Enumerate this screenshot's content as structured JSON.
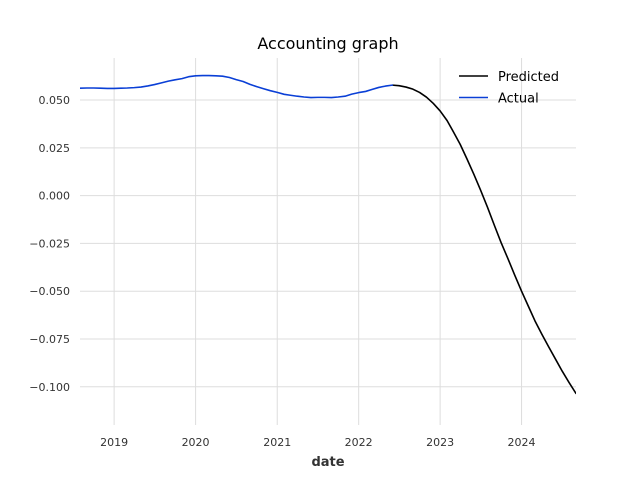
{
  "chart_data": {
    "type": "line",
    "title": "Accounting graph",
    "xlabel": "date",
    "ylabel": "",
    "x_axis_type": "date",
    "xlim": [
      "2018-08-01",
      "2024-09-01"
    ],
    "ylim": [
      -0.12,
      0.072
    ],
    "x_ticks": [
      "2019",
      "2020",
      "2021",
      "2022",
      "2023",
      "2024"
    ],
    "x_tick_dates": [
      "2019-01-01",
      "2020-01-01",
      "2021-01-01",
      "2022-01-01",
      "2023-01-01",
      "2024-01-01"
    ],
    "y_ticks": [
      "0.050",
      "0.025",
      "0.000",
      "−0.025",
      "−0.050",
      "−0.075",
      "−0.100"
    ],
    "y_tick_values": [
      0.05,
      0.025,
      0.0,
      -0.025,
      -0.05,
      -0.075,
      -0.1
    ],
    "grid": true,
    "legend_position": "top-right",
    "series": [
      {
        "name": "Predicted",
        "color": "#000000",
        "x": [
          "2022-06-01",
          "2022-07-01",
          "2022-08-01",
          "2022-09-01",
          "2022-10-01",
          "2022-11-01",
          "2022-12-01",
          "2023-01-01",
          "2023-02-01",
          "2023-03-01",
          "2023-04-01",
          "2023-05-01",
          "2023-06-01",
          "2023-07-01",
          "2023-08-01",
          "2023-09-01",
          "2023-10-01",
          "2023-11-01",
          "2023-12-01",
          "2024-01-01",
          "2024-02-01",
          "2024-03-01",
          "2024-04-01",
          "2024-05-01",
          "2024-06-01",
          "2024-07-01",
          "2024-08-01",
          "2024-09-01"
        ],
        "y": [
          0.0578,
          0.0575,
          0.0568,
          0.0557,
          0.054,
          0.0515,
          0.0483,
          0.0443,
          0.0393,
          0.0335,
          0.0268,
          0.0193,
          0.0112,
          0.003,
          -0.006,
          -0.0155,
          -0.0245,
          -0.033,
          -0.0415,
          -0.05,
          -0.058,
          -0.0655,
          -0.0725,
          -0.079,
          -0.0855,
          -0.0918,
          -0.0978,
          -0.1035
        ]
      },
      {
        "name": "Actual",
        "color": "#0a3fd6",
        "x": [
          "2018-08-01",
          "2018-09-01",
          "2018-10-01",
          "2018-11-01",
          "2018-12-01",
          "2019-01-01",
          "2019-02-01",
          "2019-03-01",
          "2019-04-01",
          "2019-05-01",
          "2019-06-01",
          "2019-07-01",
          "2019-08-01",
          "2019-09-01",
          "2019-10-01",
          "2019-11-01",
          "2019-12-01",
          "2020-01-01",
          "2020-02-01",
          "2020-03-01",
          "2020-04-01",
          "2020-05-01",
          "2020-06-01",
          "2020-07-01",
          "2020-08-01",
          "2020-09-01",
          "2020-10-01",
          "2020-11-01",
          "2020-12-01",
          "2021-01-01",
          "2021-02-01",
          "2021-03-01",
          "2021-04-01",
          "2021-05-01",
          "2021-06-01",
          "2021-07-01",
          "2021-08-01",
          "2021-09-01",
          "2021-10-01",
          "2021-11-01",
          "2021-12-01",
          "2022-01-01",
          "2022-02-01",
          "2022-03-01",
          "2022-04-01",
          "2022-05-01",
          "2022-06-01"
        ],
        "y": [
          0.0562,
          0.0563,
          0.0563,
          0.0562,
          0.0561,
          0.0561,
          0.0562,
          0.0563,
          0.0565,
          0.0568,
          0.0574,
          0.0581,
          0.059,
          0.0599,
          0.0606,
          0.0612,
          0.0622,
          0.0627,
          0.0628,
          0.0628,
          0.0627,
          0.0625,
          0.0618,
          0.0607,
          0.0597,
          0.0582,
          0.057,
          0.0559,
          0.0549,
          0.054,
          0.053,
          0.0525,
          0.052,
          0.0516,
          0.0513,
          0.0514,
          0.0514,
          0.0513,
          0.0516,
          0.052,
          0.0531,
          0.0539,
          0.0545,
          0.0555,
          0.0566,
          0.0573,
          0.0578
        ]
      }
    ]
  }
}
